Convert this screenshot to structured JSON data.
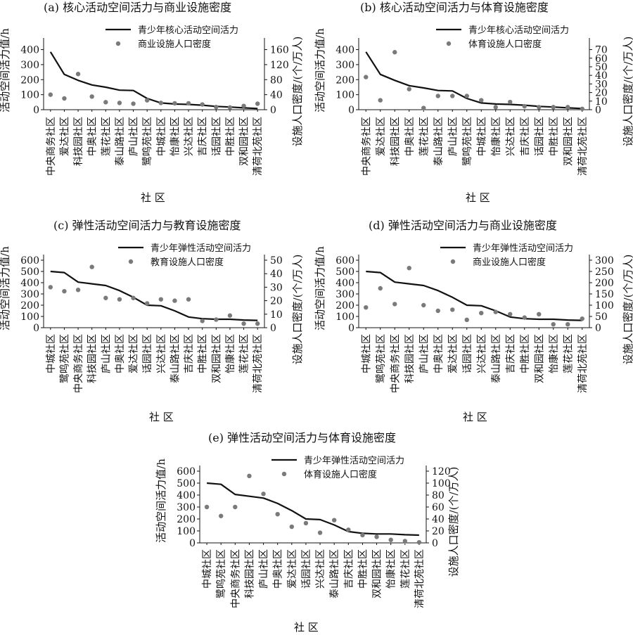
{
  "chart_data": [
    {
      "id": "a",
      "type": "line+scatter",
      "title": "(a) 核心活动空间活力与商业设施密度",
      "categories": [
        "中央商务社区",
        "爱达社区",
        "科技园社区",
        "中奥社区",
        "莲花社区",
        "泰山路社区",
        "庐山社区",
        "鹭鸣苑社区",
        "中城社区",
        "怡康社区",
        "兴达社区",
        "吉庆社区",
        "话园社区",
        "中胜社区",
        "双和园社区",
        "清荷北苑社区"
      ],
      "series": [
        {
          "name": "青少年核心活动空间活力",
          "type": "line",
          "axis": "left",
          "values": [
            385,
            235,
            195,
            165,
            150,
            130,
            128,
            75,
            45,
            38,
            35,
            30,
            22,
            18,
            12,
            8
          ]
        },
        {
          "name": "商业设施人口密度",
          "type": "scatter",
          "axis": "right",
          "values": [
            40,
            30,
            95,
            35,
            20,
            18,
            16,
            25,
            18,
            17,
            17,
            14,
            7,
            6,
            10,
            16
          ]
        }
      ],
      "ylabel_left": "活动空间活力值/h",
      "ylabel_right": "设施人口密度/(个/万人)",
      "xlabel": "社 区",
      "yticks_left": [
        0,
        100,
        200,
        300,
        400
      ],
      "ylim_left": [
        0,
        440
      ],
      "yticks_right": [
        0,
        40,
        80,
        120,
        160
      ],
      "ylim_right": [
        0,
        176
      ]
    },
    {
      "id": "b",
      "type": "line+scatter",
      "title": "(b) 核心活动空间活力与体育设施密度",
      "categories": [
        "中央商务社区",
        "爱达社区",
        "科技园社区",
        "中奥社区",
        "莲花社区",
        "泰山路社区",
        "庐山社区",
        "鹭鸣苑社区",
        "中城社区",
        "怡康社区",
        "兴达社区",
        "吉庆社区",
        "话园社区",
        "中胜社区",
        "双和园社区",
        "清荷北苑社区"
      ],
      "series": [
        {
          "name": "青少年核心活动空间活力",
          "type": "line",
          "axis": "left",
          "values": [
            385,
            235,
            195,
            160,
            145,
            128,
            125,
            75,
            45,
            38,
            35,
            30,
            22,
            18,
            12,
            8
          ]
        },
        {
          "name": "体育设施人口密度",
          "type": "scatter",
          "axis": "right",
          "values": [
            38,
            11,
            67,
            24,
            2,
            16,
            16,
            16,
            11,
            3,
            9,
            4,
            3,
            3,
            3,
            1
          ]
        }
      ],
      "ylabel_left": "活动空间活力值/h",
      "ylabel_right": "设施人口密度/(个/万人)",
      "xlabel": "社 区",
      "yticks_left": [
        0,
        100,
        200,
        300,
        400
      ],
      "ylim_left": [
        0,
        440
      ],
      "yticks_right": [
        0,
        10,
        20,
        30,
        40,
        50,
        60,
        70
      ],
      "ylim_right": [
        0,
        77
      ]
    },
    {
      "id": "c",
      "type": "line+scatter",
      "title": "(c) 弹性活动空间活力与教育设施密度",
      "categories": [
        "中城社区",
        "鹭鸣苑社区",
        "中央商务社区",
        "科技园社区",
        "庐山社区",
        "中奥社区",
        "爱达社区",
        "话园社区",
        "兴达社区",
        "泰山路社区",
        "吉庆社区",
        "中胜社区",
        "双和园社区",
        "怡康社区",
        "莲花社区",
        "清荷北苑社区"
      ],
      "series": [
        {
          "name": "青少年弹性活动空间活力",
          "type": "line",
          "axis": "left",
          "values": [
            500,
            490,
            405,
            390,
            375,
            330,
            270,
            200,
            195,
            150,
            95,
            80,
            75,
            75,
            68,
            65
          ]
        },
        {
          "name": "教育设施人口密度",
          "type": "scatter",
          "axis": "right",
          "values": [
            30,
            27,
            28,
            45,
            22,
            21,
            22,
            18,
            21,
            20,
            21,
            5,
            6,
            9,
            3,
            3
          ]
        }
      ],
      "ylabel_left": "活动空间活力值/h",
      "ylabel_right": "设施人口密度/(个/万人)",
      "xlabel": "社 区",
      "yticks_left": [
        0,
        100,
        200,
        300,
        400,
        500,
        600
      ],
      "ylim_left": [
        0,
        600
      ],
      "yticks_right": [
        0,
        10,
        20,
        30,
        40,
        50
      ],
      "ylim_right": [
        0,
        50
      ]
    },
    {
      "id": "d",
      "type": "line+scatter",
      "title": "(d) 弹性活动空间活力与商业设施密度",
      "categories": [
        "中城社区",
        "鹭鸣苑社区",
        "中央商务社区",
        "科技园社区",
        "庐山社区",
        "中奥社区",
        "爱达社区",
        "话园社区",
        "兴达社区",
        "泰山路社区",
        "吉庆社区",
        "中胜社区",
        "双和园社区",
        "怡康社区",
        "莲花社区",
        "清荷北苑社区"
      ],
      "series": [
        {
          "name": "青少年弹性活动空间活力",
          "type": "line",
          "axis": "left",
          "values": [
            500,
            490,
            405,
            390,
            375,
            330,
            270,
            200,
            195,
            150,
            95,
            80,
            75,
            75,
            68,
            65
          ]
        },
        {
          "name": "商业设施人口密度",
          "type": "scatter",
          "axis": "right",
          "values": [
            90,
            175,
            105,
            265,
            100,
            75,
            80,
            35,
            65,
            70,
            60,
            45,
            60,
            15,
            15,
            40
          ]
        }
      ],
      "ylabel_left": "活动空间活力值/h",
      "ylabel_right": "设施人口密度/(个/万人)",
      "xlabel": "社 区",
      "yticks_left": [
        0,
        100,
        200,
        300,
        400,
        500,
        600
      ],
      "ylim_left": [
        0,
        600
      ],
      "yticks_right": [
        0,
        50,
        100,
        150,
        200,
        250,
        300
      ],
      "ylim_right": [
        0,
        300
      ]
    },
    {
      "id": "e",
      "type": "line+scatter",
      "title": "(e) 弹性活动空间活力与体育设施密度",
      "categories": [
        "中城社区",
        "鹭鸣苑社区",
        "中央商务社区",
        "科技园社区",
        "庐山社区",
        "中奥社区",
        "爱达社区",
        "话园社区",
        "兴达社区",
        "泰山路社区",
        "吉庆社区",
        "中胜社区",
        "双和园社区",
        "怡康社区",
        "莲花社区",
        "清荷北苑社区"
      ],
      "series": [
        {
          "name": "青少年弹性活动空间活力",
          "type": "line",
          "axis": "left",
          "values": [
            500,
            490,
            405,
            390,
            375,
            330,
            270,
            200,
            195,
            150,
            95,
            80,
            75,
            75,
            68,
            65
          ]
        },
        {
          "name": "体育设施人口密度",
          "type": "scatter",
          "axis": "right",
          "values": [
            60,
            45,
            60,
            112,
            82,
            48,
            27,
            33,
            17,
            38,
            22,
            13,
            10,
            5,
            3,
            1
          ]
        }
      ],
      "ylabel_left": "活动空间活力值/h",
      "ylabel_right": "设施人口密度/(个/万人)",
      "xlabel": "社 区",
      "yticks_left": [
        0,
        100,
        200,
        300,
        400,
        500,
        600
      ],
      "ylim_left": [
        0,
        600
      ],
      "yticks_right": [
        0,
        20,
        40,
        60,
        80,
        100,
        120
      ],
      "ylim_right": [
        0,
        120
      ]
    }
  ]
}
